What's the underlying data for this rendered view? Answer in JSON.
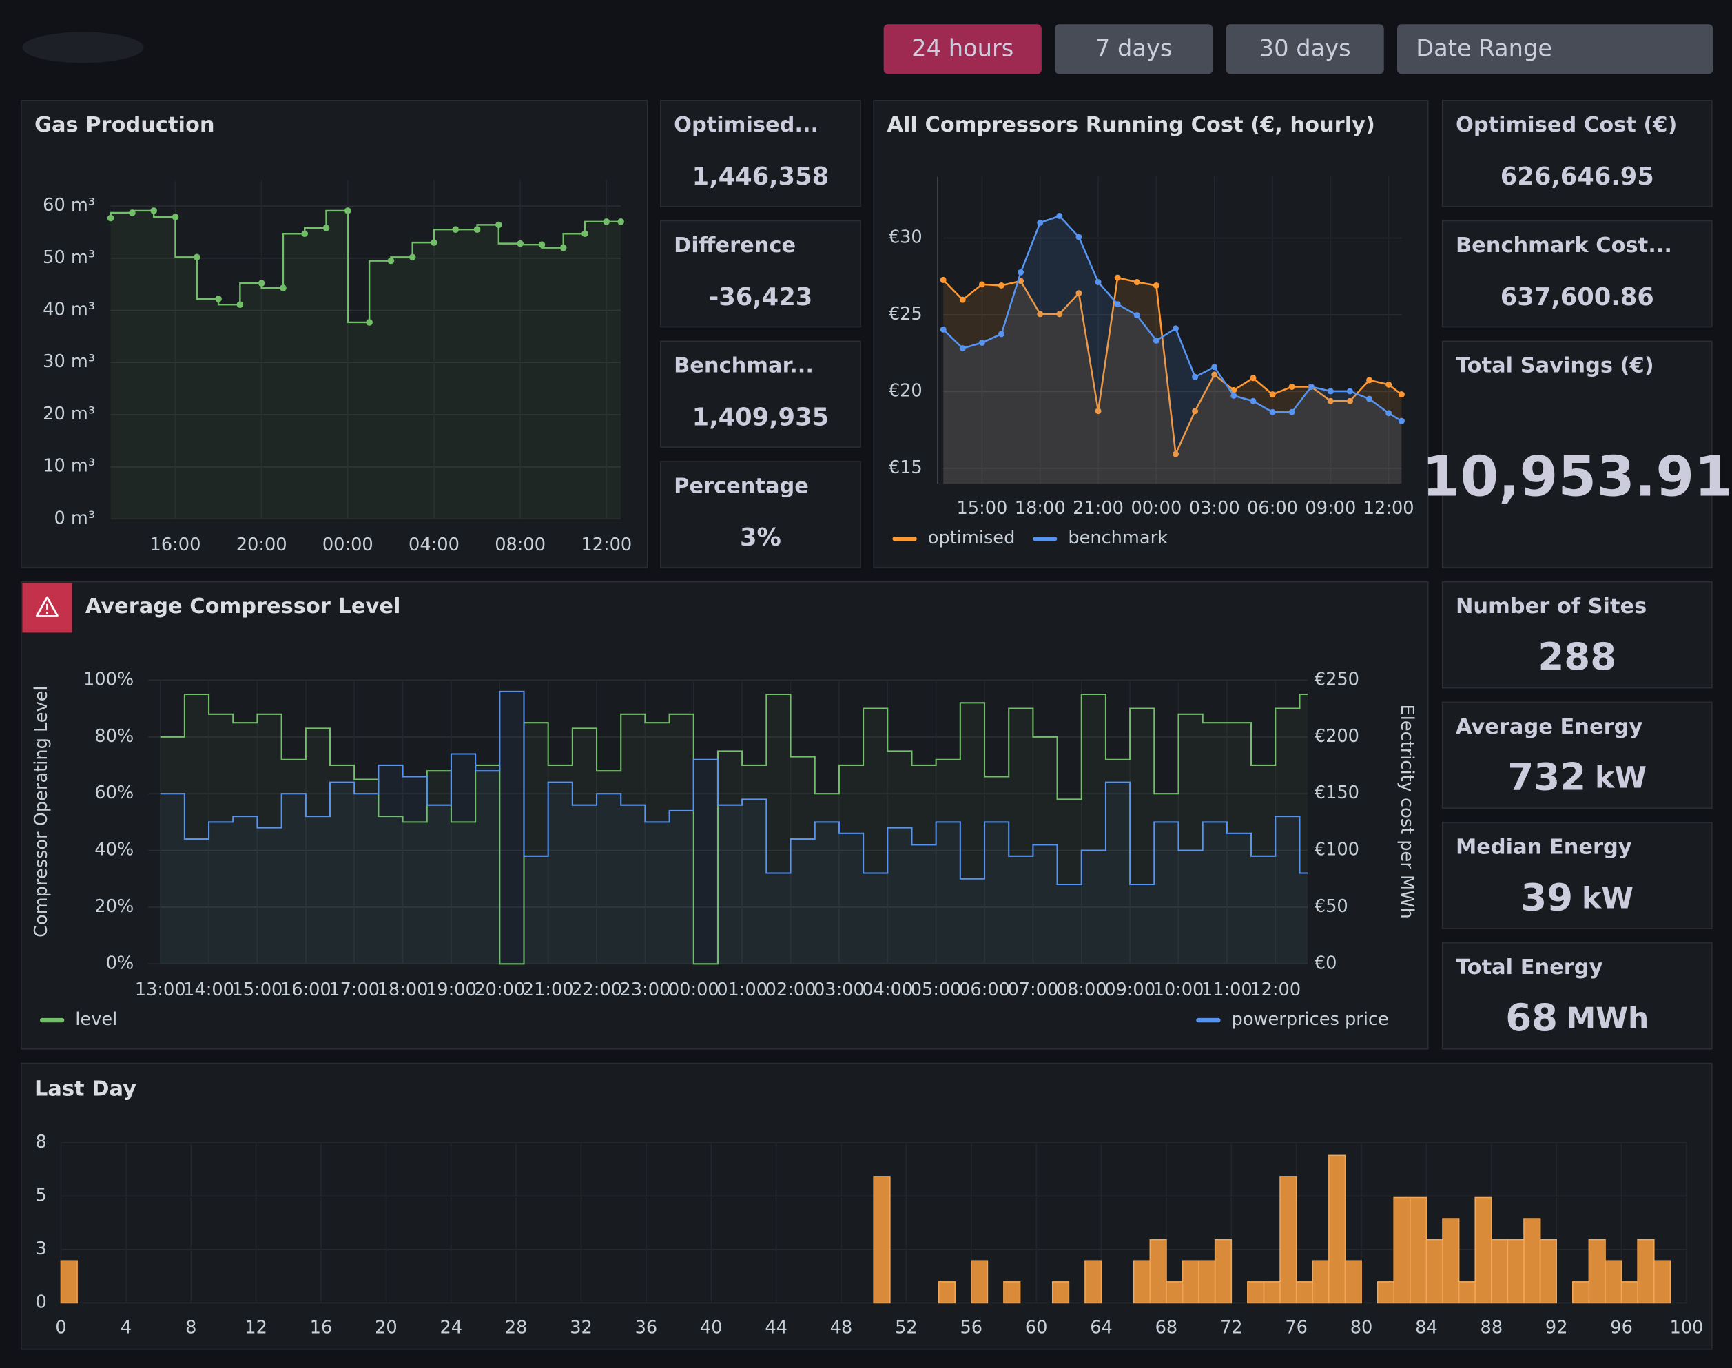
{
  "buttons": [
    {
      "label": "24 hours",
      "active": true
    },
    {
      "label": "7 days",
      "active": false
    },
    {
      "label": "30 days",
      "active": false
    },
    {
      "label": "Date Range",
      "active": false
    }
  ],
  "stats": [
    {
      "title": "Optimised...",
      "value": "1,446,358",
      "color": "#73bf69"
    },
    {
      "title": "Difference",
      "value": "-36,423",
      "color": "#73bf69"
    },
    {
      "title": "Benchmar...",
      "value": "1,409,935",
      "color": "#73bf69"
    },
    {
      "title": "Percentage",
      "value": "3%",
      "color": "#f2495c"
    },
    {
      "title": "Optimised Cost (€)",
      "value": "626,646.95",
      "color": "#ff9830"
    },
    {
      "title": "Benchmark Cost...",
      "value": "637,600.86",
      "color": "#5794f2"
    },
    {
      "title": "Total Savings (€)",
      "value": "10,953.91",
      "color": "#73bf69"
    },
    {
      "title": "Number of Sites",
      "value": "288",
      "color": "#73bf69"
    },
    {
      "title": "Average Energy",
      "value": "732",
      "unit": "kW",
      "color": "#73bf69"
    },
    {
      "title": "Median Energy",
      "value": "39",
      "unit": "kW",
      "color": "#73bf69"
    },
    {
      "title": "Total Energy",
      "value": "68",
      "unit": "MWh",
      "color": "#73bf69"
    }
  ],
  "chart_data": [
    {
      "type": "step-line",
      "title": "Gas Production",
      "color": "#73bf69",
      "x": [
        "13:00",
        "14:00",
        "15:00",
        "16:00",
        "17:00",
        "18:00",
        "19:00",
        "20:00",
        "21:00",
        "22:00",
        "23:00",
        "00:00",
        "01:00",
        "02:00",
        "03:00",
        "04:00",
        "05:00",
        "06:00",
        "07:00",
        "08:00",
        "09:00",
        "10:00",
        "11:00",
        "12:00",
        "12:40"
      ],
      "values": [
        57.7,
        58.7,
        59.1,
        57.9,
        50.2,
        42.2,
        41.1,
        45.2,
        44.3,
        54.7,
        55.8,
        59.1,
        37.7,
        49.5,
        50.2,
        53,
        55.5,
        55.5,
        56.4,
        52.8,
        52.6,
        52,
        54.7,
        57,
        57
      ],
      "xlim": [
        "13:00",
        "12:40"
      ],
      "xticks": [
        "16:00",
        "20:00",
        "00:00",
        "04:00",
        "08:00",
        "12:00"
      ],
      "ylim": [
        0,
        65
      ],
      "yticks": [
        {
          "value": 0,
          "label": "0 m³"
        },
        {
          "value": 10,
          "label": "10 m³"
        },
        {
          "value": 20,
          "label": "20 m³"
        },
        {
          "value": 30,
          "label": "30 m³"
        },
        {
          "value": 40,
          "label": "40 m³"
        },
        {
          "value": 50,
          "label": "50 m³"
        },
        {
          "value": 60,
          "label": "60 m³"
        }
      ],
      "grid": true
    },
    {
      "type": "line",
      "title": "All Compressors Running Cost (€, hourly)",
      "x": [
        "13:00",
        "14:00",
        "15:00",
        "16:00",
        "17:00",
        "18:00",
        "19:00",
        "20:00",
        "21:00",
        "22:00",
        "23:00",
        "00:00",
        "01:00",
        "02:00",
        "03:00",
        "04:00",
        "05:00",
        "06:00",
        "07:00",
        "08:00",
        "09:00",
        "10:00",
        "11:00",
        "12:00",
        "12:40"
      ],
      "series": [
        {
          "name": "optimised",
          "color": "#ff9830",
          "values": [
            27.27,
            25.98,
            26.98,
            26.91,
            27.2,
            25.05,
            25.05,
            26.41,
            18.73,
            27.42,
            27.13,
            26.91,
            15.93,
            18.73,
            21.1,
            20.09,
            20.88,
            19.81,
            20.31,
            20.31,
            19.38,
            19.38,
            20.74,
            20.45,
            19.81
          ]
        },
        {
          "name": "benchmark",
          "color": "#5794f2",
          "values": [
            24.04,
            22.82,
            23.18,
            23.75,
            27.77,
            31.0,
            31.44,
            30.07,
            27.13,
            25.69,
            24.97,
            23.32,
            24.11,
            20.95,
            21.6,
            19.73,
            19.38,
            18.66,
            18.66,
            20.31,
            20.02,
            20.02,
            19.52,
            18.59,
            18.08
          ]
        }
      ],
      "xlim": [
        "13:00",
        "12:40"
      ],
      "xticks": [
        "15:00",
        "18:00",
        "21:00",
        "00:00",
        "03:00",
        "06:00",
        "09:00",
        "12:00"
      ],
      "ylim": [
        14,
        34
      ],
      "yticks": [
        {
          "value": 15,
          "label": "€15"
        },
        {
          "value": 20,
          "label": "€20"
        },
        {
          "value": 25,
          "label": "€25"
        },
        {
          "value": 30,
          "label": "€30"
        }
      ],
      "grid": true
    },
    {
      "type": "step",
      "title": "Average Compressor Level",
      "ylabel": "Compressor Operating Level",
      "y2label": "Electricity cost per MWh",
      "x": [
        "13:00",
        "13:30",
        "14:00",
        "14:30",
        "15:00",
        "15:30",
        "16:00",
        "16:30",
        "17:00",
        "17:30",
        "18:00",
        "18:30",
        "19:00",
        "19:30",
        "20:00",
        "20:30",
        "21:00",
        "21:30",
        "22:00",
        "22:30",
        "23:00",
        "23:30",
        "00:00",
        "00:30",
        "01:00",
        "01:30",
        "02:00",
        "02:30",
        "03:00",
        "03:30",
        "04:00",
        "04:30",
        "05:00",
        "05:30",
        "06:00",
        "06:30",
        "07:00",
        "07:30",
        "08:00",
        "08:30",
        "09:00",
        "09:30",
        "10:00",
        "10:30",
        "11:00",
        "11:30",
        "12:00",
        "12:30"
      ],
      "series": [
        {
          "name": "level",
          "color": "#73bf69",
          "axis": "y",
          "values": [
            80,
            95,
            88,
            85,
            88,
            72,
            83,
            70,
            65,
            52,
            50,
            68,
            50,
            70,
            0,
            85,
            70,
            83,
            68,
            88,
            85,
            88,
            0,
            75,
            70,
            95,
            73,
            60,
            70,
            90,
            75,
            70,
            72,
            92,
            66,
            90,
            80,
            58,
            95,
            72,
            90,
            60,
            88,
            85,
            85,
            70,
            90,
            95
          ]
        },
        {
          "name": "powerprices price",
          "color": "#5794f2",
          "axis": "y2",
          "values": [
            150,
            110,
            125,
            130,
            120,
            150,
            130,
            160,
            150,
            175,
            165,
            140,
            185,
            170,
            240,
            95,
            160,
            140,
            150,
            140,
            125,
            135,
            180,
            140,
            145,
            80,
            110,
            125,
            115,
            80,
            120,
            105,
            125,
            75,
            125,
            95,
            105,
            70,
            100,
            160,
            70,
            125,
            100,
            125,
            115,
            95,
            130,
            80
          ]
        }
      ],
      "xlim": [
        "12:45",
        "12:40"
      ],
      "xticks": [
        "13:00",
        "14:00",
        "15:00",
        "16:00",
        "17:00",
        "18:00",
        "19:00",
        "20:00",
        "21:00",
        "22:00",
        "23:00",
        "00:00",
        "01:00",
        "02:00",
        "03:00",
        "04:00",
        "05:00",
        "06:00",
        "07:00",
        "08:00",
        "09:00",
        "10:00",
        "11:00",
        "12:00"
      ],
      "ylim": [
        0,
        100
      ],
      "yticks": [
        {
          "value": 0,
          "label": "0%"
        },
        {
          "value": 20,
          "label": "20%"
        },
        {
          "value": 40,
          "label": "40%"
        },
        {
          "value": 60,
          "label": "60%"
        },
        {
          "value": 80,
          "label": "80%"
        },
        {
          "value": 100,
          "label": "100%"
        }
      ],
      "y2lim": [
        0,
        250
      ],
      "y2ticks": [
        {
          "value": 0,
          "label": "€0"
        },
        {
          "value": 50,
          "label": "€50"
        },
        {
          "value": 100,
          "label": "€100"
        },
        {
          "value": 150,
          "label": "€150"
        },
        {
          "value": 200,
          "label": "€200"
        },
        {
          "value": 250,
          "label": "€250"
        }
      ],
      "grid": true
    },
    {
      "type": "histogram",
      "title": "Last Day",
      "color": "#d98b3a",
      "bins": [
        0,
        1,
        2,
        3,
        4,
        5,
        6,
        7,
        8,
        9,
        10,
        11,
        12,
        13,
        14,
        15,
        16,
        17,
        18,
        19,
        20,
        21,
        22,
        23,
        24,
        25,
        26,
        27,
        28,
        29,
        30,
        31,
        32,
        33,
        34,
        35,
        36,
        37,
        38,
        39,
        40,
        41,
        42,
        43,
        44,
        45,
        46,
        47,
        48,
        49,
        50,
        51,
        52,
        53,
        54,
        55,
        56,
        57,
        58,
        59,
        60,
        61,
        62,
        63,
        64,
        65,
        66,
        67,
        68,
        69,
        70,
        71,
        72,
        73,
        74,
        75,
        76,
        77,
        78,
        79,
        80,
        81,
        82,
        83,
        84,
        85,
        86,
        87,
        88,
        89,
        90,
        91,
        92,
        93,
        94,
        95,
        96,
        97,
        98,
        99,
        100
      ],
      "values": [
        2,
        0,
        0,
        0,
        0,
        0,
        0,
        0,
        0,
        0,
        0,
        0,
        0,
        0,
        0,
        0,
        0,
        0,
        0,
        0,
        0,
        0,
        0,
        0,
        0,
        0,
        0,
        0,
        0,
        0,
        0,
        0,
        0,
        0,
        0,
        0,
        0,
        0,
        0,
        0,
        0,
        0,
        0,
        0,
        0,
        0,
        0,
        0,
        0,
        0,
        6,
        0,
        0,
        0,
        1,
        0,
        2,
        0,
        1,
        0,
        0,
        1,
        0,
        2,
        0,
        0,
        2,
        3,
        1,
        2,
        2,
        3,
        0,
        1,
        1,
        6,
        1,
        2,
        7,
        2,
        0,
        1,
        5,
        5,
        3,
        4,
        1,
        5,
        3,
        3,
        4,
        3,
        0,
        1,
        3,
        2,
        1,
        3,
        2,
        0
      ],
      "xlim": [
        0,
        100
      ],
      "xticks": [
        0,
        4,
        8,
        12,
        16,
        20,
        24,
        28,
        32,
        36,
        40,
        44,
        48,
        52,
        56,
        60,
        64,
        68,
        72,
        76,
        80,
        84,
        88,
        92,
        96,
        100
      ],
      "ylim": [
        0,
        7.6
      ],
      "yticks": [
        0,
        {
          "value": 2.53,
          "label": "3"
        },
        {
          "value": 5.07,
          "label": "5"
        },
        {
          "value": 7.6,
          "label": "8"
        }
      ],
      "grid": true
    }
  ]
}
